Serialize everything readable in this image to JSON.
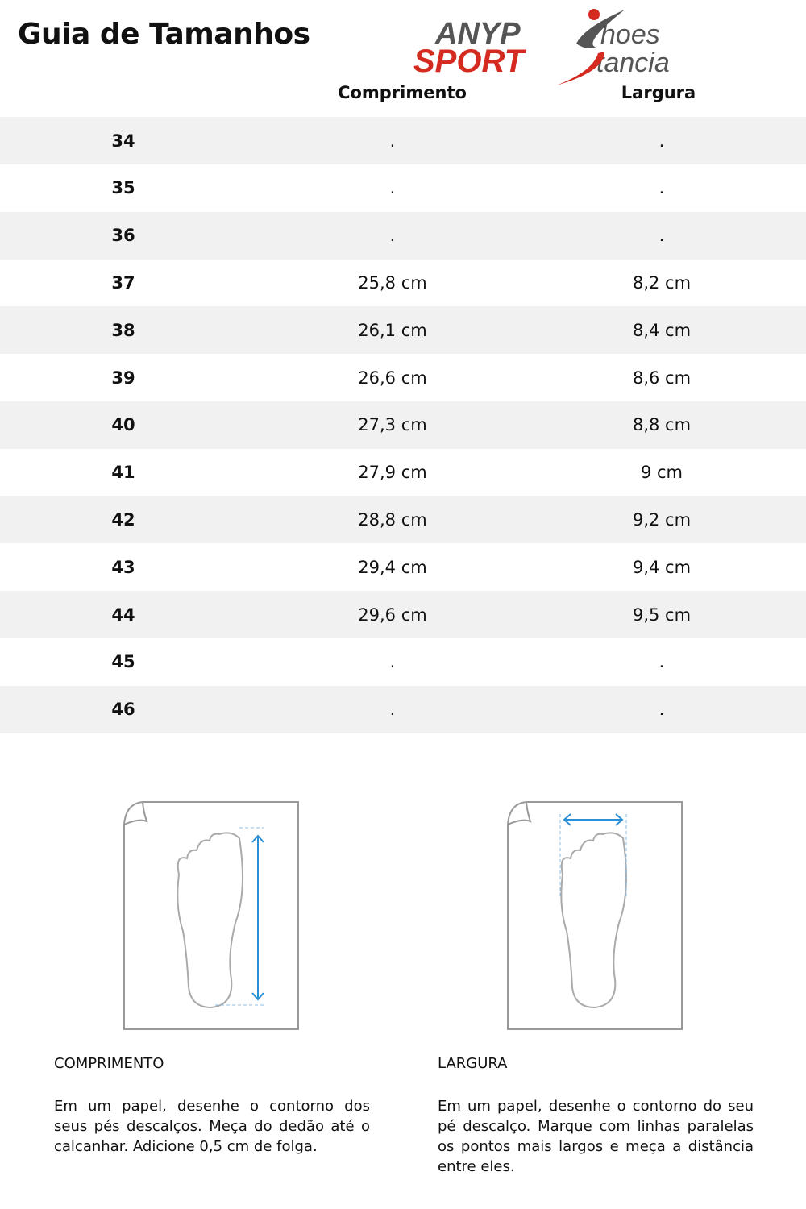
{
  "title": "Guia de Tamanhos",
  "logo": {
    "line1": "ANYP",
    "line1b": "hoes",
    "line2": "SPORT",
    "line2b": "tancia",
    "colors": {
      "gray": "#555555",
      "red": "#d42a20"
    }
  },
  "table": {
    "headers": [
      "",
      "Comprimento",
      "Largura"
    ],
    "rows": [
      {
        "size": "34",
        "length": ".",
        "width": "."
      },
      {
        "size": "35",
        "length": ".",
        "width": "."
      },
      {
        "size": "36",
        "length": ".",
        "width": "."
      },
      {
        "size": "37",
        "length": "25,8 cm",
        "width": "8,2 cm"
      },
      {
        "size": "38",
        "length": "26,1 cm",
        "width": "8,4 cm"
      },
      {
        "size": "39",
        "length": "26,6 cm",
        "width": "8,6 cm"
      },
      {
        "size": "40",
        "length": "27,3 cm",
        "width": "8,8 cm"
      },
      {
        "size": "41",
        "length": "27,9 cm",
        "width": "9 cm"
      },
      {
        "size": "42",
        "length": "28,8 cm",
        "width": "9,2 cm"
      },
      {
        "size": "43",
        "length": "29,4 cm",
        "width": "9,4 cm"
      },
      {
        "size": "44",
        "length": "29,6 cm",
        "width": "9,5 cm"
      },
      {
        "size": "45",
        "length": ".",
        "width": "."
      },
      {
        "size": "46",
        "length": ".",
        "width": "."
      }
    ],
    "stripe_color": "#f1f1f1"
  },
  "instructions": [
    {
      "label": "COMPRIMENTO",
      "text": "Em um papel, desenhe o contorno dos seus pés descalços. Meça do dedão até o calcanhar. Adicione 0,5 cm de folga."
    },
    {
      "label": "LARGURA",
      "text": "Em um papel, desenhe o contorno do seu pé descalço. Marque com linhas paralelas os pontos mais largos e meça a distância entre eles."
    }
  ],
  "arrow_color": "#2a8fd6"
}
